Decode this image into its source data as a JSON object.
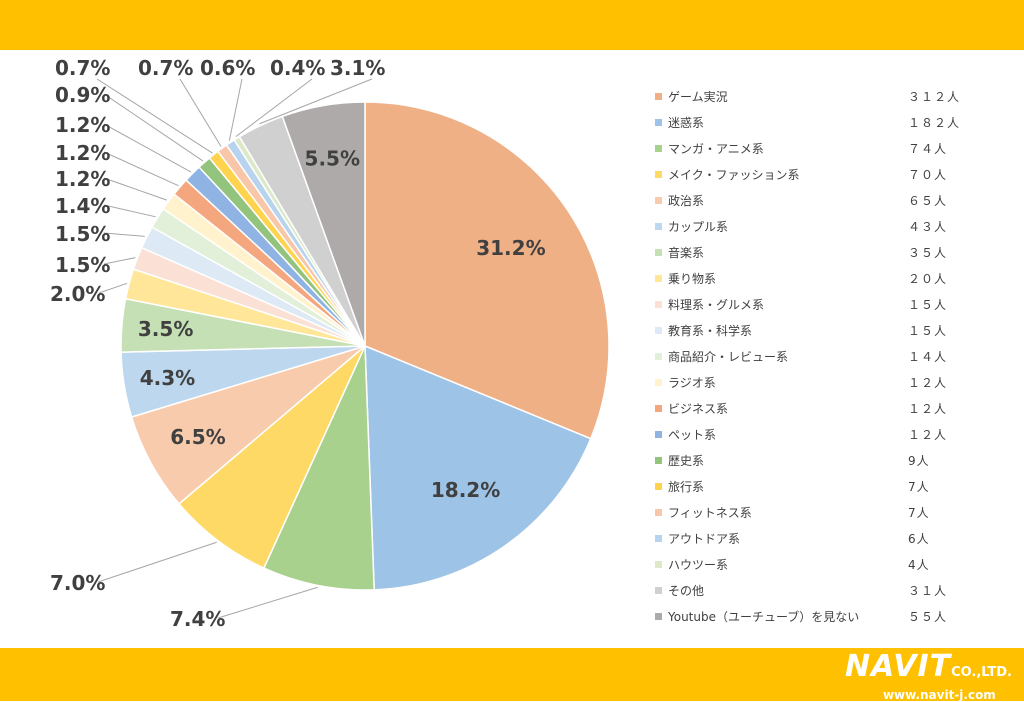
{
  "colors": {
    "band": "#ffc000"
  },
  "brand": {
    "name": "NAVIT",
    "suffix": "CO.,LTD.",
    "url": "www.navit-j.com"
  },
  "chart_data": {
    "type": "pie",
    "start_angle_deg": 0,
    "direction": "clockwise",
    "legend_position": "right",
    "slices": [
      {
        "label": "ゲーム実況",
        "count": "３１２人",
        "value": 31.2,
        "pct_label": "31.2%",
        "color": "#f0b086"
      },
      {
        "label": "迷惑系",
        "count": "１８２人",
        "value": 18.2,
        "pct_label": "18.2%",
        "color": "#9dc3e6"
      },
      {
        "label": "マンガ・アニメ系",
        "count": "７４人",
        "value": 7.4,
        "pct_label": "7.4%",
        "color": "#a9d18e"
      },
      {
        "label": "メイク・ファッション系",
        "count": "７０人",
        "value": 7.0,
        "pct_label": "7.0%",
        "color": "#ffd966"
      },
      {
        "label": "政治系",
        "count": "６５人",
        "value": 6.5,
        "pct_label": "6.5%",
        "color": "#f8cbad"
      },
      {
        "label": "カップル系",
        "count": "４３人",
        "value": 4.3,
        "pct_label": "4.3%",
        "color": "#bdd7ee"
      },
      {
        "label": "音楽系",
        "count": "３５人",
        "value": 3.5,
        "pct_label": "3.5%",
        "color": "#c5e0b4"
      },
      {
        "label": "乗り物系",
        "count": "２０人",
        "value": 2.0,
        "pct_label": "2.0%",
        "color": "#ffe699"
      },
      {
        "label": "料理系・グルメ系",
        "count": "１５人",
        "value": 1.5,
        "pct_label": "1.5%",
        "color": "#fbe1d5"
      },
      {
        "label": "教育系・科学系",
        "count": "１５人",
        "value": 1.5,
        "pct_label": "1.5%",
        "color": "#dde9f5"
      },
      {
        "label": "商品紹介・レビュー系",
        "count": "１４人",
        "value": 1.4,
        "pct_label": "1.4%",
        "color": "#e2efd9"
      },
      {
        "label": "ラジオ系",
        "count": "１２人",
        "value": 1.2,
        "pct_label": "1.2%",
        "color": "#fff2cc"
      },
      {
        "label": "ビジネス系",
        "count": "１２人",
        "value": 1.2,
        "pct_label": "1.2%",
        "color": "#f4a77f"
      },
      {
        "label": "ペット系",
        "count": "１２人",
        "value": 1.2,
        "pct_label": "1.2%",
        "color": "#8fb4e3"
      },
      {
        "label": "歴史系",
        "count": "9人",
        "value": 0.9,
        "pct_label": "0.9%",
        "color": "#93c47d"
      },
      {
        "label": "旅行系",
        "count": "7人",
        "value": 0.7,
        "pct_label": "0.7%",
        "color": "#ffd34d"
      },
      {
        "label": "フィットネス系",
        "count": "7人",
        "value": 0.7,
        "pct_label": "0.7%",
        "color": "#f8c6a8"
      },
      {
        "label": "アウトドア系",
        "count": "6人",
        "value": 0.6,
        "pct_label": "0.6%",
        "color": "#b8d3ee"
      },
      {
        "label": "ハウツー系",
        "count": "4人",
        "value": 0.4,
        "pct_label": "0.4%",
        "color": "#dbe9c9"
      },
      {
        "label": "その他",
        "count": "３１人",
        "value": 3.1,
        "pct_label": "3.1%",
        "color": "#d0d0d0"
      },
      {
        "label": "Youtube（ユーチューブ）を見ない",
        "count": "５５人",
        "value": 5.5,
        "pct_label": "5.5%",
        "color": "#aeaaaa"
      }
    ]
  }
}
